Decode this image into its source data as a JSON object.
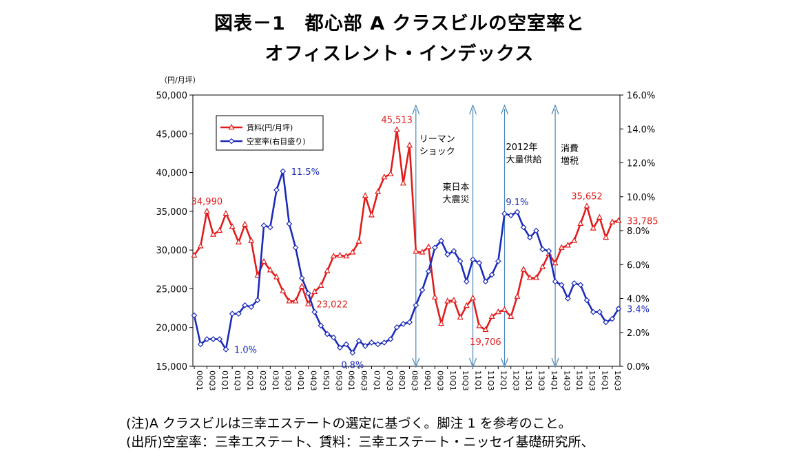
{
  "title_line1": "図表－1　都心部 A クラスビルの空室率と",
  "title_line2": "オフィスレント・インデックス",
  "notes": [
    "(注)A クラスビルは三幸エステートの選定に基づく。脚注 1 を参考のこと。",
    "(出所)空室率：三幸エステート、賃料：三幸エステート・ニッセイ基礎研究所、"
  ],
  "chart_data": {
    "type": "line",
    "y_left_unit": "（円/月坪）",
    "y_left_range": [
      15000,
      50000
    ],
    "y_left_ticks": [
      "15,000",
      "20,000",
      "25,000",
      "30,000",
      "35,000",
      "40,000",
      "45,000",
      "50,000"
    ],
    "y_right_range": [
      0,
      16
    ],
    "y_right_ticks": [
      "0.0%",
      "2.0%",
      "4.0%",
      "6.0%",
      "8.0%",
      "10.0%",
      "12.0%",
      "14.0%",
      "16.0%"
    ],
    "x_tick_labels": [
      "00Q1",
      "00Q3",
      "01Q1",
      "01Q3",
      "02Q1",
      "02Q3",
      "03Q1",
      "03Q3",
      "04Q1",
      "04Q3",
      "05Q1",
      "05Q3",
      "06Q1",
      "06Q3",
      "07Q1",
      "07Q3",
      "08Q1",
      "08Q3",
      "09Q1",
      "09Q3",
      "10Q1",
      "10Q3",
      "11Q1",
      "11Q3",
      "12Q1",
      "12Q3",
      "13Q1",
      "13Q3",
      "14Q1",
      "14Q3",
      "15Q1",
      "15Q3",
      "16Q1",
      "16Q3"
    ],
    "legend_position": "top-left",
    "colors": {
      "rent": "#e21b1b",
      "vacancy": "#1b2bb8",
      "event_line": "#4a86b8"
    },
    "series": [
      {
        "name": "賃料(円/月坪)",
        "axis": "left",
        "marker": "triangle",
        "values": [
          29300,
          30500,
          34990,
          32000,
          32500,
          34700,
          33000,
          31000,
          33300,
          31200,
          26700,
          28500,
          27400,
          26500,
          24700,
          23400,
          23400,
          25300,
          23022,
          24600,
          25400,
          27300,
          29200,
          29300,
          29200,
          29700,
          31100,
          37000,
          34500,
          37500,
          39400,
          39800,
          45513,
          38600,
          43500,
          29800,
          29700,
          30400,
          23900,
          20500,
          23400,
          23500,
          21300,
          22800,
          23800,
          20200,
          19706,
          21400,
          22000,
          22300,
          21400,
          24000,
          27500,
          26400,
          26400,
          27800,
          29500,
          28300,
          30300,
          30600,
          31200,
          33400,
          35652,
          32800,
          34200,
          31600,
          33600,
          33785
        ]
      },
      {
        "name": "空室率(右目盛り)",
        "axis": "right",
        "marker": "diamond",
        "values": [
          3.0,
          1.3,
          1.6,
          1.6,
          1.6,
          1.0,
          3.1,
          3.1,
          3.6,
          3.5,
          3.9,
          8.3,
          8.2,
          10.4,
          11.5,
          8.4,
          7.0,
          5.2,
          4.3,
          3.2,
          2.4,
          1.9,
          1.7,
          1.1,
          1.3,
          0.8,
          1.5,
          1.2,
          1.4,
          1.3,
          1.4,
          1.6,
          2.3,
          2.5,
          2.6,
          3.6,
          4.5,
          5.6,
          7.0,
          7.4,
          6.6,
          6.8,
          6.2,
          5.0,
          6.3,
          6.1,
          5.0,
          5.4,
          6.2,
          9.0,
          8.9,
          9.1,
          8.2,
          7.6,
          8.0,
          6.9,
          6.8,
          5.0,
          4.8,
          4.0,
          4.9,
          4.8,
          3.9,
          3.2,
          3.2,
          2.6,
          2.8,
          3.4
        ]
      }
    ],
    "data_labels": [
      {
        "series": 0,
        "index": 2,
        "text": "34,990",
        "pos": "above"
      },
      {
        "series": 0,
        "index": 18,
        "text": "23,022",
        "pos": "right"
      },
      {
        "series": 0,
        "index": 32,
        "text": "45,513",
        "pos": "above"
      },
      {
        "series": 0,
        "index": 46,
        "text": "19,706",
        "pos": "below"
      },
      {
        "series": 0,
        "index": 62,
        "text": "35,652",
        "pos": "above"
      },
      {
        "series": 0,
        "index": 67,
        "text": "33,785",
        "pos": "right"
      },
      {
        "series": 1,
        "index": 14,
        "text": "11.5%",
        "pos": "right"
      },
      {
        "series": 1,
        "index": 5,
        "text": "1.0%",
        "pos": "right"
      },
      {
        "series": 1,
        "index": 25,
        "text": "0.8%",
        "pos": "below"
      },
      {
        "series": 1,
        "index": 51,
        "text": "9.1%",
        "pos": "above"
      },
      {
        "series": 1,
        "index": 67,
        "text": "3.4%",
        "pos": "right"
      }
    ],
    "events": [
      {
        "index": 35,
        "lines": [
          "リーマン",
          "ショック"
        ]
      },
      {
        "index": 44,
        "lines": [
          "東日本",
          "大震災"
        ]
      },
      {
        "index": 49,
        "lines": [
          "2012年",
          "大量供給"
        ]
      },
      {
        "index": 57,
        "lines": [
          "消費",
          "増税"
        ]
      }
    ]
  }
}
